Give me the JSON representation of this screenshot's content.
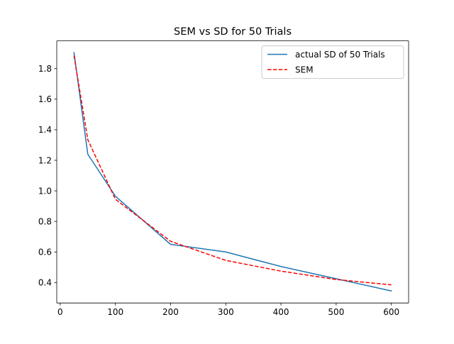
{
  "chart_data": {
    "type": "line",
    "title": "SEM vs SD for 50 Trials",
    "xlabel": "",
    "ylabel": "",
    "xlim": [
      -6.25,
      631.25
    ],
    "ylim": [
      0.2662,
      1.9815
    ],
    "xticks": [
      0,
      100,
      200,
      300,
      400,
      500,
      600
    ],
    "yticks": [
      0.4,
      0.6,
      0.8,
      1.0,
      1.2,
      1.4,
      1.6,
      1.8
    ],
    "xtick_labels": [
      "0",
      "100",
      "200",
      "300",
      "400",
      "500",
      "600"
    ],
    "ytick_labels": [
      "0.4",
      "0.6",
      "0.8",
      "1.0",
      "1.2",
      "1.4",
      "1.6",
      "1.8"
    ],
    "grid": false,
    "legend_position": "top-right",
    "x": [
      25,
      50,
      100,
      200,
      300,
      400,
      500,
      600
    ],
    "series": [
      {
        "name": "actual SD of 50 Trials",
        "values": [
          1.905,
          1.24,
          0.965,
          0.65,
          0.6,
          0.505,
          0.425,
          0.345
        ],
        "color": "#1f77b4",
        "style": "solid"
      },
      {
        "name": "SEM",
        "values": [
          1.885,
          1.335,
          0.945,
          0.67,
          0.545,
          0.475,
          0.42,
          0.385
        ],
        "color": "#ff0000",
        "style": "dashed"
      }
    ]
  }
}
